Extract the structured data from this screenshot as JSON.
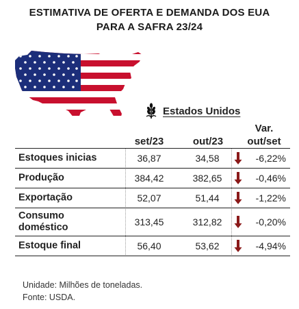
{
  "title_line1": "ESTIMATIVA DE OFERTA E DEMANDA DOS EUA",
  "title_line2": "PARA A SAFRA 23/24",
  "region": "Estados Unidos",
  "icons": {
    "map": "usa-flag-map-icon",
    "crop": "wheat-icon",
    "trend": "down-arrow-icon"
  },
  "colors": {
    "arrow": "#8b1a1a",
    "flag_red": "#c8102e",
    "flag_blue": "#1c2e7a"
  },
  "columns": {
    "c1": "set/23",
    "c2": "out/23",
    "c3a": "Var.",
    "c3b": "out/set"
  },
  "rows": [
    {
      "label": "Estoques inicias",
      "set": "36,87",
      "out": "34,58",
      "var": "-6,22%"
    },
    {
      "label": "Produção",
      "set": "384,42",
      "out": "382,65",
      "var": "-0,46%"
    },
    {
      "label": "Exportação",
      "set": "52,07",
      "out": "51,44",
      "var": "-1,22%"
    },
    {
      "label_a": "Consumo",
      "label_b": "doméstico",
      "set": "313,45",
      "out": "312,82",
      "var": "-0,20%"
    },
    {
      "label": "Estoque final",
      "set": "56,40",
      "out": "53,62",
      "var": "-4,94%"
    }
  ],
  "footer": {
    "unit": "Unidade: Milhões de toneladas.",
    "source": "Fonte: USDA."
  }
}
